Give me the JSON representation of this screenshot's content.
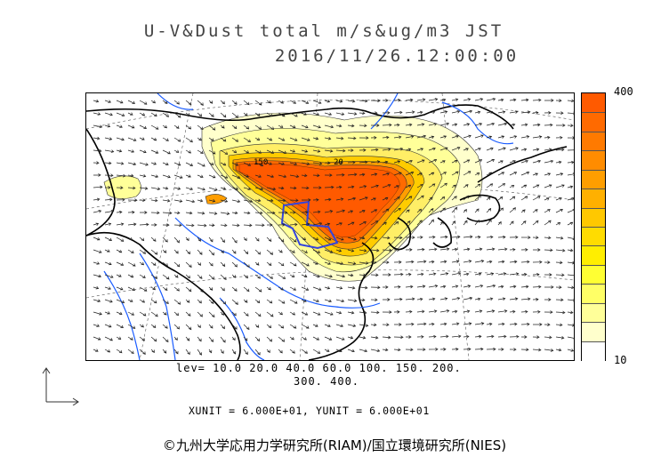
{
  "title": {
    "line1": "U-V&Dust total m/s&ug/m3 JST",
    "line2": "2016/11/26.12:00:00"
  },
  "colorbar": {
    "max_label": "400",
    "min_label": "10",
    "colors_top_to_bottom": [
      "#ff5a00",
      "#ff6a00",
      "#ff7a00",
      "#ff8c00",
      "#ff9e00",
      "#ffb000",
      "#ffc800",
      "#ffdc00",
      "#ffee00",
      "#ffff33",
      "#ffff66",
      "#ffff99",
      "#ffffcc",
      "#ffffff"
    ]
  },
  "levels": {
    "line1": "lev= 10.0 20.0 40.0 60.0 100. 150. 200.",
    "line2": "300. 400."
  },
  "units": "XUNIT = 6.000E+01, YUNIT = 6.000E+01",
  "credit": "©九州大学応用力学研究所(RIAM)/国立環境研究所(NIES)",
  "map": {
    "contour_labels": [
      "150",
      "20"
    ],
    "plume_color": "#ff5a00",
    "coast_color": "#000000",
    "river_color": "#1a5cff",
    "province_box_color": "#3344dd"
  }
}
